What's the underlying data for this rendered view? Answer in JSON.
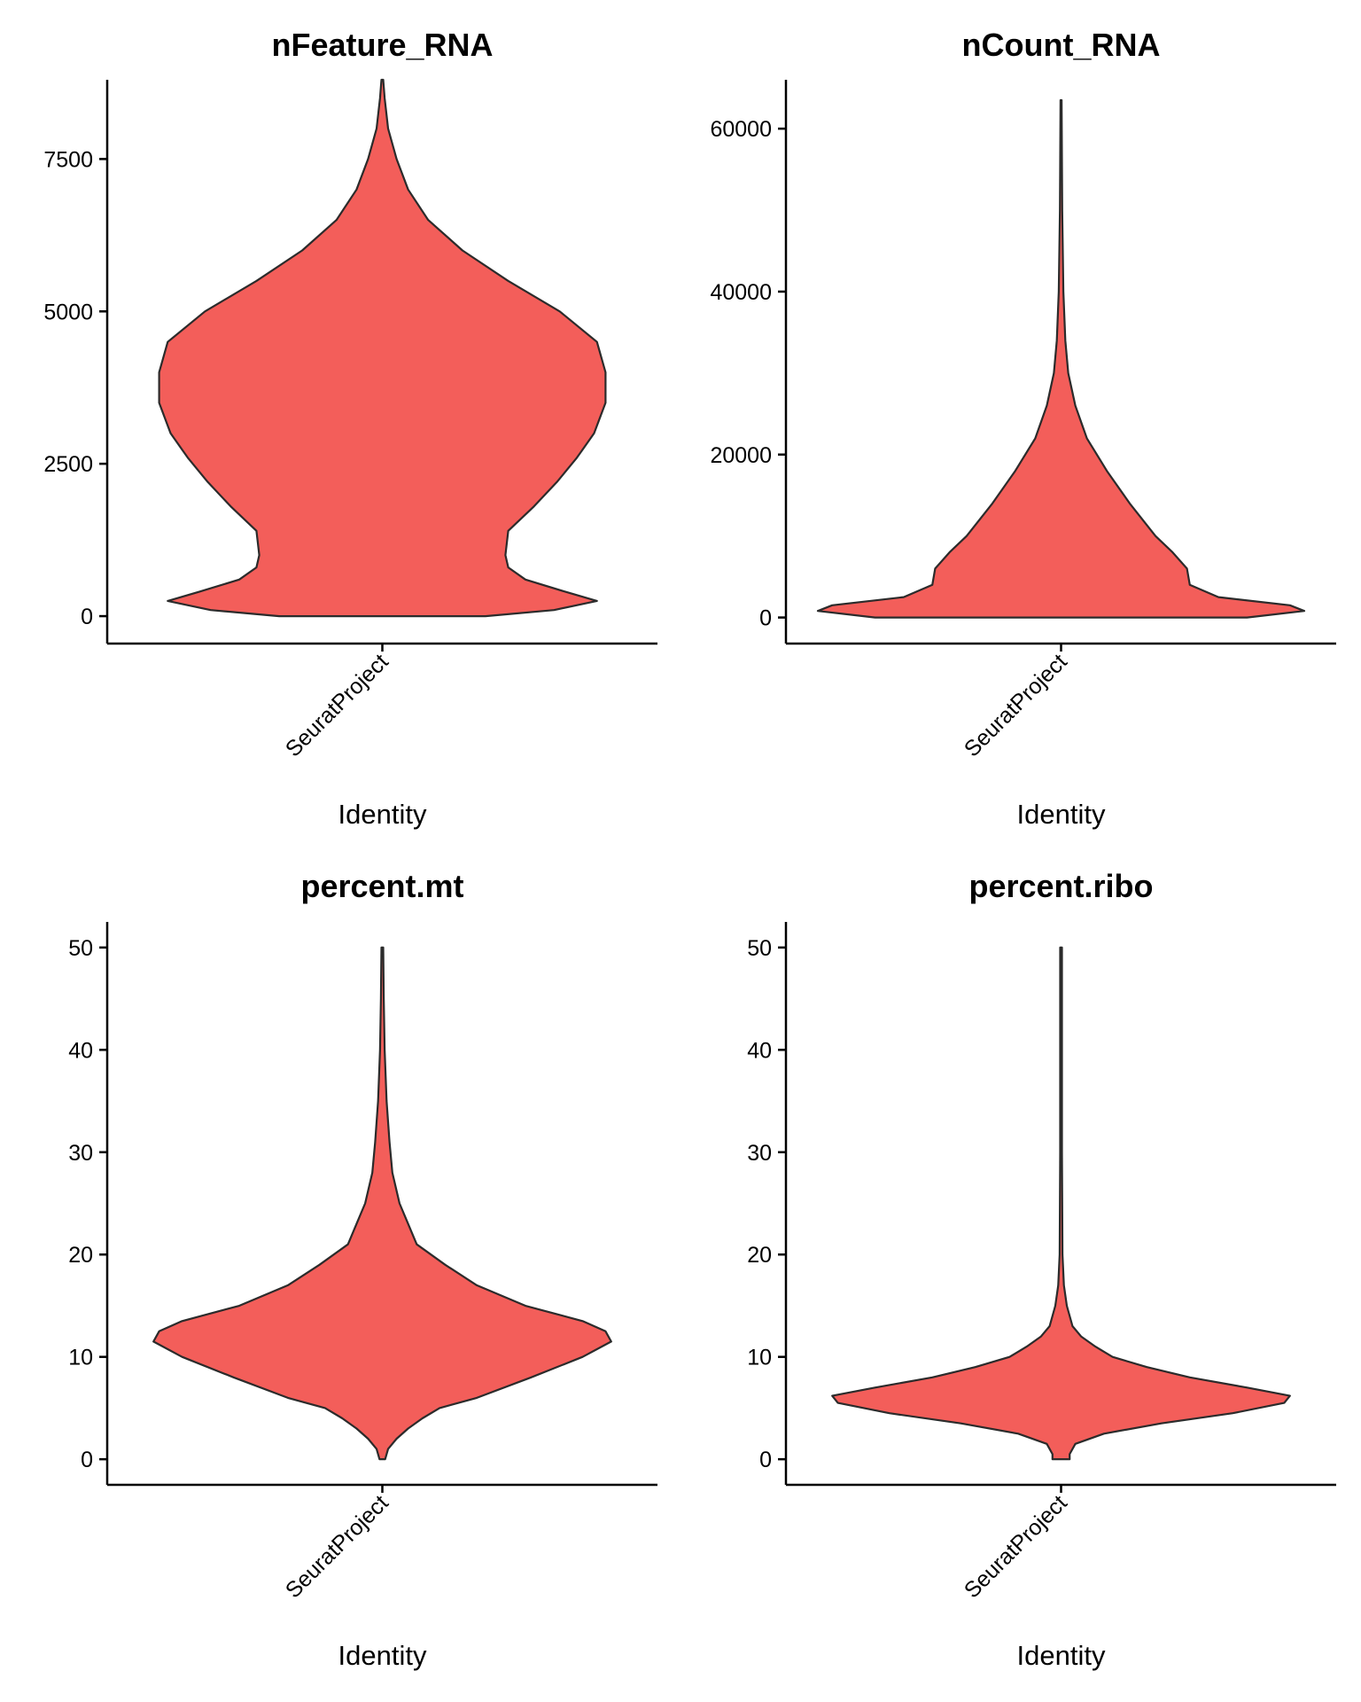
{
  "chart_data": [
    {
      "type": "violin",
      "title": "nFeature_RNA",
      "xlabel": "Identity",
      "ylabel": "",
      "categories": [
        "SeuratProject"
      ],
      "ylim": [
        -450,
        8800
      ],
      "yticks": [
        0,
        2500,
        5000,
        7500
      ],
      "ytick_labels": [
        "0",
        "2500",
        "5000",
        "7500"
      ],
      "fill": "#F35E5A",
      "density": [
        [
          0,
          0.36
        ],
        [
          100,
          0.6
        ],
        [
          250,
          0.75
        ],
        [
          400,
          0.64
        ],
        [
          600,
          0.5
        ],
        [
          800,
          0.44
        ],
        [
          1000,
          0.43
        ],
        [
          1400,
          0.44
        ],
        [
          1800,
          0.53
        ],
        [
          2200,
          0.61
        ],
        [
          2600,
          0.68
        ],
        [
          3000,
          0.74
        ],
        [
          3500,
          0.78
        ],
        [
          4000,
          0.78
        ],
        [
          4500,
          0.75
        ],
        [
          5000,
          0.62
        ],
        [
          5500,
          0.44
        ],
        [
          6000,
          0.28
        ],
        [
          6500,
          0.16
        ],
        [
          7000,
          0.09
        ],
        [
          7500,
          0.05
        ],
        [
          8000,
          0.02
        ],
        [
          8500,
          0.008
        ],
        [
          8800,
          0.003
        ]
      ]
    },
    {
      "type": "violin",
      "title": "nCount_RNA",
      "xlabel": "Identity",
      "ylabel": "",
      "categories": [
        "SeuratProject"
      ],
      "ylim": [
        -3200,
        66000
      ],
      "yticks": [
        0,
        20000,
        40000,
        60000
      ],
      "ytick_labels": [
        "0",
        "20000",
        "40000",
        "60000"
      ],
      "fill": "#F35E5A",
      "density": [
        [
          0,
          0.65
        ],
        [
          800,
          0.85
        ],
        [
          1500,
          0.8
        ],
        [
          2500,
          0.55
        ],
        [
          4000,
          0.45
        ],
        [
          6000,
          0.44
        ],
        [
          8000,
          0.39
        ],
        [
          10000,
          0.33
        ],
        [
          14000,
          0.24
        ],
        [
          18000,
          0.16
        ],
        [
          22000,
          0.09
        ],
        [
          26000,
          0.05
        ],
        [
          30000,
          0.025
        ],
        [
          34000,
          0.015
        ],
        [
          40000,
          0.008
        ],
        [
          50000,
          0.004
        ],
        [
          63500,
          0.002
        ]
      ]
    },
    {
      "type": "violin",
      "title": "percent.mt",
      "xlabel": "Identity",
      "ylabel": "",
      "categories": [
        "SeuratProject"
      ],
      "ylim": [
        -2.5,
        52.5
      ],
      "yticks": [
        0,
        10,
        20,
        30,
        40,
        50
      ],
      "ytick_labels": [
        "0",
        "10",
        "20",
        "30",
        "40",
        "50"
      ],
      "fill": "#F35E5A",
      "density": [
        [
          0,
          0.01
        ],
        [
          1,
          0.02
        ],
        [
          2,
          0.05
        ],
        [
          3,
          0.09
        ],
        [
          4,
          0.14
        ],
        [
          5,
          0.2
        ],
        [
          6,
          0.33
        ],
        [
          8,
          0.52
        ],
        [
          10,
          0.7
        ],
        [
          11.5,
          0.8
        ],
        [
          12.5,
          0.78
        ],
        [
          13.5,
          0.7
        ],
        [
          15,
          0.5
        ],
        [
          17,
          0.33
        ],
        [
          19,
          0.22
        ],
        [
          21,
          0.12
        ],
        [
          23,
          0.09
        ],
        [
          25,
          0.06
        ],
        [
          28,
          0.035
        ],
        [
          31,
          0.025
        ],
        [
          35,
          0.015
        ],
        [
          40,
          0.008
        ],
        [
          45,
          0.005
        ],
        [
          50,
          0.003
        ]
      ]
    },
    {
      "type": "violin",
      "title": "percent.ribo",
      "xlabel": "Identity",
      "ylabel": "",
      "categories": [
        "SeuratProject"
      ],
      "ylim": [
        -2.5,
        52.5
      ],
      "yticks": [
        0,
        10,
        20,
        30,
        40,
        50
      ],
      "ytick_labels": [
        "0",
        "10",
        "20",
        "30",
        "40",
        "50"
      ],
      "fill": "#F35E5A",
      "density": [
        [
          0,
          0.03
        ],
        [
          0.5,
          0.03
        ],
        [
          1.5,
          0.05
        ],
        [
          2.5,
          0.15
        ],
        [
          3.5,
          0.35
        ],
        [
          4.5,
          0.6
        ],
        [
          5.5,
          0.78
        ],
        [
          6.2,
          0.8
        ],
        [
          7,
          0.65
        ],
        [
          8,
          0.45
        ],
        [
          9,
          0.3
        ],
        [
          10,
          0.18
        ],
        [
          11,
          0.12
        ],
        [
          12,
          0.07
        ],
        [
          13,
          0.04
        ],
        [
          15,
          0.02
        ],
        [
          17,
          0.01
        ],
        [
          20,
          0.005
        ],
        [
          30,
          0.003
        ],
        [
          50,
          0.003
        ]
      ]
    }
  ]
}
